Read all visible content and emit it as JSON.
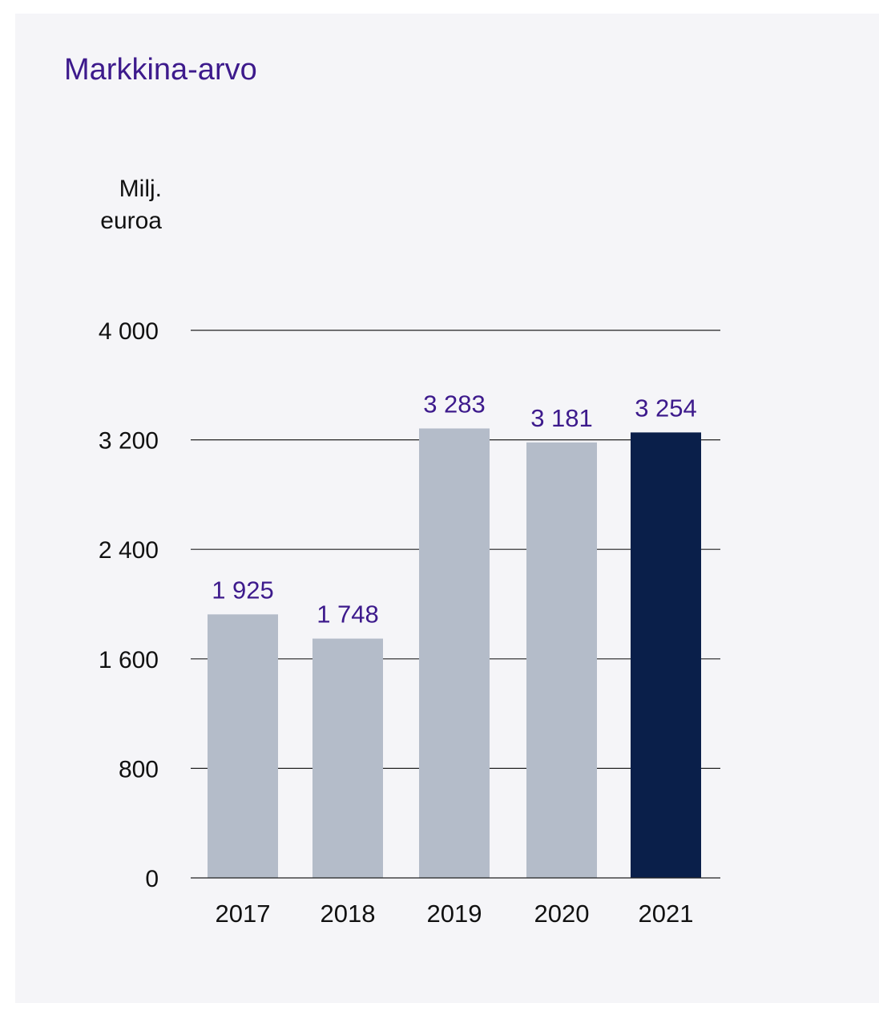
{
  "chart_data": {
    "type": "bar",
    "title": "Markkina-arvo",
    "ylabel_lines": [
      "Milj.",
      "euroa"
    ],
    "categories": [
      "2017",
      "2018",
      "2019",
      "2020",
      "2021"
    ],
    "values": [
      1925,
      1748,
      3283,
      3181,
      3254
    ],
    "value_labels": [
      "1 925",
      "1 748",
      "3 283",
      "3 181",
      "3 254"
    ],
    "ylim": [
      0,
      4000
    ],
    "yticks": [
      0,
      800,
      1600,
      2400,
      3200,
      4000
    ],
    "ytick_labels": [
      "0",
      "800",
      "1 600",
      "2 400",
      "3 200",
      "4 000"
    ],
    "grid": true,
    "colors": {
      "default_bar": "#b4bcc9",
      "highlight_bar": "#0a1f4a",
      "value_label": "#3d1a8c",
      "title": "#3d1a8c",
      "gridline": "#222222"
    },
    "highlight_index": 4
  }
}
